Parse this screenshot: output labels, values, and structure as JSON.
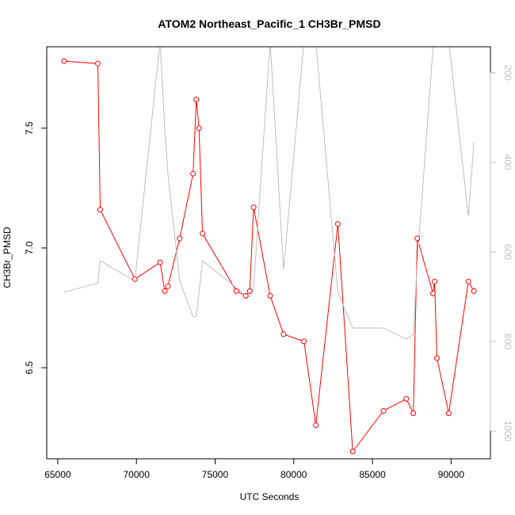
{
  "chart_data": {
    "type": "line",
    "title": "ATOM2 Northeast_Pacific_1 CH3Br_PMSD",
    "xlabel": "UTC Seconds",
    "ylabel": "CH3Br_PMSD",
    "xlim": [
      64300,
      92500
    ],
    "ylim": [
      6.12,
      7.84
    ],
    "x_ticks": [
      {
        "value": 65000,
        "label": "65000"
      },
      {
        "value": 70000,
        "label": "70000"
      },
      {
        "value": 75000,
        "label": "75000"
      },
      {
        "value": 80000,
        "label": "80000"
      },
      {
        "value": 85000,
        "label": "85000"
      },
      {
        "value": 90000,
        "label": "90000"
      }
    ],
    "y_ticks": [
      {
        "value": 6.5,
        "label": "6.5"
      },
      {
        "value": 7.0,
        "label": "7.0"
      },
      {
        "value": 7.5,
        "label": "7.5"
      }
    ],
    "y2_axis": {
      "reversed": true,
      "lim": [
        142,
        1062
      ],
      "ticks": [
        {
          "value": 200,
          "label": "200"
        },
        {
          "value": 400,
          "label": "400"
        },
        {
          "value": 600,
          "label": "600"
        },
        {
          "value": 800,
          "label": "800"
        },
        {
          "value": 1000,
          "label": "1000"
        }
      ]
    },
    "grid": false,
    "series": [
      {
        "axis": "left",
        "color": "#ff0000",
        "markers": "open-circle",
        "x": [
          65400,
          67550,
          67700,
          69900,
          71500,
          71800,
          72000,
          72750,
          73600,
          73800,
          73980,
          74200,
          76350,
          76950,
          77200,
          77450,
          78500,
          79350,
          80650,
          81400,
          82800,
          83750,
          85700,
          87150,
          87600,
          87850,
          88850,
          88950,
          89100,
          89850,
          91100,
          91450
        ],
        "y": [
          7.78,
          7.77,
          7.16,
          6.87,
          6.94,
          6.82,
          6.84,
          7.04,
          7.31,
          7.62,
          7.5,
          7.06,
          6.82,
          6.8,
          6.82,
          7.17,
          6.8,
          6.64,
          6.61,
          6.26,
          7.1,
          6.15,
          6.32,
          6.37,
          6.31,
          7.04,
          6.81,
          6.86,
          6.54,
          6.31,
          6.86,
          6.82
        ]
      },
      {
        "axis": "right",
        "color": "#bebebe",
        "markers": "none",
        "x": [
          65400,
          67550,
          67700,
          69900,
          71500,
          71800,
          72000,
          72750,
          73600,
          73800,
          73980,
          74200,
          76350,
          76950,
          77200,
          77450,
          78500,
          79350,
          80650,
          81400,
          82800,
          83750,
          85700,
          87150,
          87600,
          87850,
          88850,
          88950,
          89100,
          89850,
          91100,
          91450
        ],
        "y": [
          690,
          670,
          620,
          665,
          130,
          320,
          425,
          665,
          745,
          745,
          690,
          620,
          680,
          700,
          700,
          680,
          130,
          640,
          130,
          130,
          690,
          770,
          770,
          795,
          785,
          620,
          145,
          130,
          130,
          130,
          520,
          355
        ]
      }
    ]
  }
}
